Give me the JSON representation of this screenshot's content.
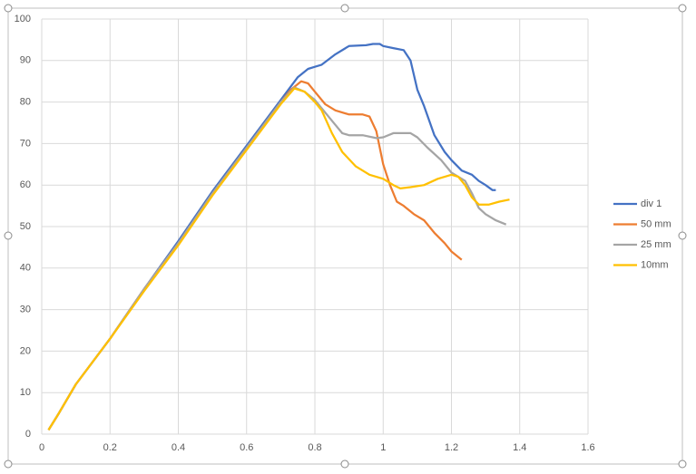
{
  "chart_data": {
    "type": "line",
    "xlim": [
      0,
      1.6
    ],
    "xticks": [
      0,
      0.2,
      0.4,
      0.6,
      0.8,
      1,
      1.2,
      1.4,
      1.6
    ],
    "ylim": [
      0,
      100
    ],
    "yticks": [
      0,
      10,
      20,
      30,
      40,
      50,
      60,
      70,
      80,
      90,
      100
    ],
    "grid": true,
    "legend": "right",
    "series": [
      {
        "name": "div 1",
        "color": "#4472c4",
        "x": [
          0.02,
          0.05,
          0.1,
          0.2,
          0.3,
          0.4,
          0.5,
          0.6,
          0.7,
          0.75,
          0.78,
          0.8,
          0.82,
          0.86,
          0.9,
          0.95,
          0.97,
          0.99,
          1.0,
          1.03,
          1.06,
          1.08,
          1.1,
          1.12,
          1.15,
          1.18,
          1.2,
          1.23,
          1.26,
          1.28,
          1.3,
          1.32,
          1.33
        ],
        "values": [
          1,
          5,
          12,
          23,
          35,
          46.5,
          58.5,
          69.5,
          80.5,
          86,
          88,
          88.5,
          89,
          91.5,
          93.5,
          93.7,
          94,
          94,
          93.5,
          93,
          92.5,
          90,
          83,
          79,
          72,
          68,
          66,
          63.5,
          62.5,
          61,
          60,
          58.8,
          58.8
        ]
      },
      {
        "name": "50 mm",
        "color": "#ed7d31",
        "x": [
          0.02,
          0.05,
          0.1,
          0.2,
          0.3,
          0.4,
          0.5,
          0.6,
          0.7,
          0.73,
          0.76,
          0.78,
          0.8,
          0.83,
          0.86,
          0.9,
          0.94,
          0.96,
          0.98,
          1.0,
          1.02,
          1.04,
          1.06,
          1.09,
          1.12,
          1.15,
          1.18,
          1.2,
          1.23
        ],
        "values": [
          1,
          5,
          12,
          23,
          35,
          46,
          58,
          69,
          80,
          83,
          85,
          84.5,
          82.5,
          79.5,
          78,
          77,
          77,
          76.5,
          73,
          65,
          60,
          56,
          55,
          53,
          51.5,
          48.5,
          46,
          44,
          42
        ]
      },
      {
        "name": "25 mm",
        "color": "#a5a5a5",
        "x": [
          0.02,
          0.05,
          0.1,
          0.2,
          0.3,
          0.4,
          0.5,
          0.6,
          0.7,
          0.74,
          0.77,
          0.8,
          0.83,
          0.86,
          0.88,
          0.9,
          0.94,
          0.98,
          1.0,
          1.03,
          1.08,
          1.1,
          1.13,
          1.17,
          1.2,
          1.24,
          1.26,
          1.28,
          1.3,
          1.33,
          1.36
        ],
        "values": [
          1,
          5,
          12,
          23,
          35,
          46,
          58,
          69,
          80,
          83.5,
          82.5,
          80.5,
          77.5,
          74.5,
          72.5,
          72,
          72,
          71.3,
          71.5,
          72.5,
          72.5,
          71.5,
          69,
          66,
          63,
          61,
          58,
          54.5,
          53,
          51.5,
          50.5
        ]
      },
      {
        "name": "10mm",
        "color": "#ffc000",
        "x": [
          0.02,
          0.05,
          0.1,
          0.2,
          0.3,
          0.4,
          0.5,
          0.6,
          0.7,
          0.74,
          0.77,
          0.8,
          0.82,
          0.85,
          0.88,
          0.92,
          0.96,
          1.0,
          1.03,
          1.05,
          1.08,
          1.12,
          1.16,
          1.2,
          1.22,
          1.24,
          1.26,
          1.28,
          1.31,
          1.34,
          1.37
        ],
        "values": [
          1,
          5,
          12,
          23,
          34.5,
          45.5,
          57.5,
          68.5,
          79.5,
          83.3,
          82.5,
          80,
          78,
          72.5,
          68,
          64.5,
          62.5,
          61.5,
          60,
          59.2,
          59.5,
          60,
          61.5,
          62.5,
          62,
          60,
          57,
          55.3,
          55.3,
          56,
          56.5
        ]
      }
    ]
  }
}
